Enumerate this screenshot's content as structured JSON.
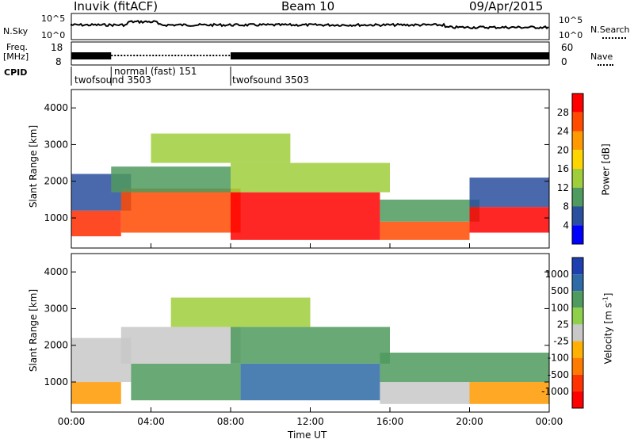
{
  "header": {
    "station": "Inuvik (fitACF)",
    "beam": "Beam 10",
    "date": "09/Apr/2015"
  },
  "top_panels": {
    "nsky_label": "N.Sky",
    "nsky_ticks": [
      "10^5",
      "10^0"
    ],
    "nsky_right_ticks": [
      "10^5",
      "10^0"
    ],
    "nsearch_label": "N.Search",
    "freq_label_1": "Freq.",
    "freq_label_2": "[MHz]",
    "freq_ticks": [
      "18",
      "8"
    ],
    "freq_right_ticks": [
      "60",
      "0"
    ],
    "nave_label": "Nave",
    "cpid_label": "CPID",
    "cpid_segments": [
      {
        "label": "twofsound 3503",
        "start": 0.0,
        "end": 2.0
      },
      {
        "label": "normal (fast) 151",
        "start": 2.0,
        "end": 8.0
      },
      {
        "label": "twofsound 3503",
        "start": 8.0,
        "end": 24.0
      }
    ]
  },
  "chart_data": [
    {
      "type": "heatmap",
      "title": "",
      "ylabel": "Slant Range [km]",
      "xlabel": "",
      "ylim": [
        180,
        4500
      ],
      "yticks": [
        "1000",
        "2000",
        "3000",
        "4000"
      ],
      "colorbar": {
        "label": "Power [dB]",
        "ticks": [
          "28",
          "24",
          "20",
          "16",
          "12",
          "8",
          "4"
        ],
        "colors": [
          "#ff0000",
          "#ff4a00",
          "#ff9900",
          "#ffd500",
          "#9fce3a",
          "#4f9a5e",
          "#2a4f9e",
          "#0000ff"
        ]
      }
    },
    {
      "type": "heatmap",
      "title": "",
      "ylabel": "Slant Range [km]",
      "xlabel": "Time UT",
      "xlim": [
        0,
        24
      ],
      "xticks": [
        "00:00",
        "04:00",
        "08:00",
        "12:00",
        "16:00",
        "20:00",
        "00:00"
      ],
      "ylim": [
        180,
        4500
      ],
      "yticks": [
        "1000",
        "2000",
        "3000",
        "4000"
      ],
      "colorbar": {
        "label": "Velocity [m s",
        "label_sup": "-1",
        "label_close": "]",
        "ticks": [
          "1000",
          "500",
          "100",
          "25",
          "-25",
          "-100",
          "-500",
          "-1000"
        ],
        "colors": [
          "#1e3fb0",
          "#2d6aa6",
          "#4f9a5e",
          "#8ed04c",
          "#c8c8c8",
          "#ffb000",
          "#ff7a00",
          "#ff3300",
          "#ff0000"
        ]
      }
    }
  ],
  "bands": {
    "power": [
      {
        "x0": 0.0,
        "x1": 2.5,
        "r0": 500,
        "r1": 1200,
        "c": "#ff2a00"
      },
      {
        "x0": 0.0,
        "x1": 3.0,
        "r0": 1200,
        "r1": 2200,
        "c": "#2a4f9e"
      },
      {
        "x0": 2.5,
        "x1": 8.5,
        "r0": 600,
        "r1": 1800,
        "c": "#ff4a00"
      },
      {
        "x0": 2.0,
        "x1": 8.0,
        "r0": 1700,
        "r1": 2400,
        "c": "#4f9a5e"
      },
      {
        "x0": 8.0,
        "x1": 15.5,
        "r0": 400,
        "r1": 1700,
        "c": "#ff0000"
      },
      {
        "x0": 8.0,
        "x1": 16.0,
        "r0": 1700,
        "r1": 2500,
        "c": "#9fce3a"
      },
      {
        "x0": 15.5,
        "x1": 20.0,
        "r0": 400,
        "r1": 900,
        "c": "#ff4a00"
      },
      {
        "x0": 15.5,
        "x1": 20.5,
        "r0": 900,
        "r1": 1500,
        "c": "#4f9a5e"
      },
      {
        "x0": 20.0,
        "x1": 24.0,
        "r0": 600,
        "r1": 1300,
        "c": "#ff0000"
      },
      {
        "x0": 20.0,
        "x1": 24.0,
        "r0": 1300,
        "r1": 2100,
        "c": "#2a4f9e"
      },
      {
        "x0": 4.0,
        "x1": 11.0,
        "r0": 2500,
        "r1": 3300,
        "c": "#9fce3a"
      }
    ],
    "velocity": [
      {
        "x0": 0.0,
        "x1": 2.5,
        "r0": 400,
        "r1": 1000,
        "c": "#ff9900"
      },
      {
        "x0": 0.0,
        "x1": 3.0,
        "r0": 1000,
        "r1": 2200,
        "c": "#c8c8c8"
      },
      {
        "x0": 3.0,
        "x1": 8.5,
        "r0": 500,
        "r1": 1500,
        "c": "#4f9a5e"
      },
      {
        "x0": 2.5,
        "x1": 8.5,
        "r0": 1500,
        "r1": 2500,
        "c": "#c8c8c8"
      },
      {
        "x0": 8.5,
        "x1": 15.5,
        "r0": 500,
        "r1": 1500,
        "c": "#2d6aa6"
      },
      {
        "x0": 8.0,
        "x1": 16.0,
        "r0": 1500,
        "r1": 2500,
        "c": "#4f9a5e"
      },
      {
        "x0": 15.5,
        "x1": 20.0,
        "r0": 400,
        "r1": 1000,
        "c": "#c8c8c8"
      },
      {
        "x0": 15.5,
        "x1": 24.0,
        "r0": 1000,
        "r1": 1800,
        "c": "#4f9a5e"
      },
      {
        "x0": 20.0,
        "x1": 24.0,
        "r0": 400,
        "r1": 1000,
        "c": "#ff9900"
      },
      {
        "x0": 5.0,
        "x1": 12.0,
        "r0": 2500,
        "r1": 3300,
        "c": "#9fce3a"
      }
    ]
  }
}
